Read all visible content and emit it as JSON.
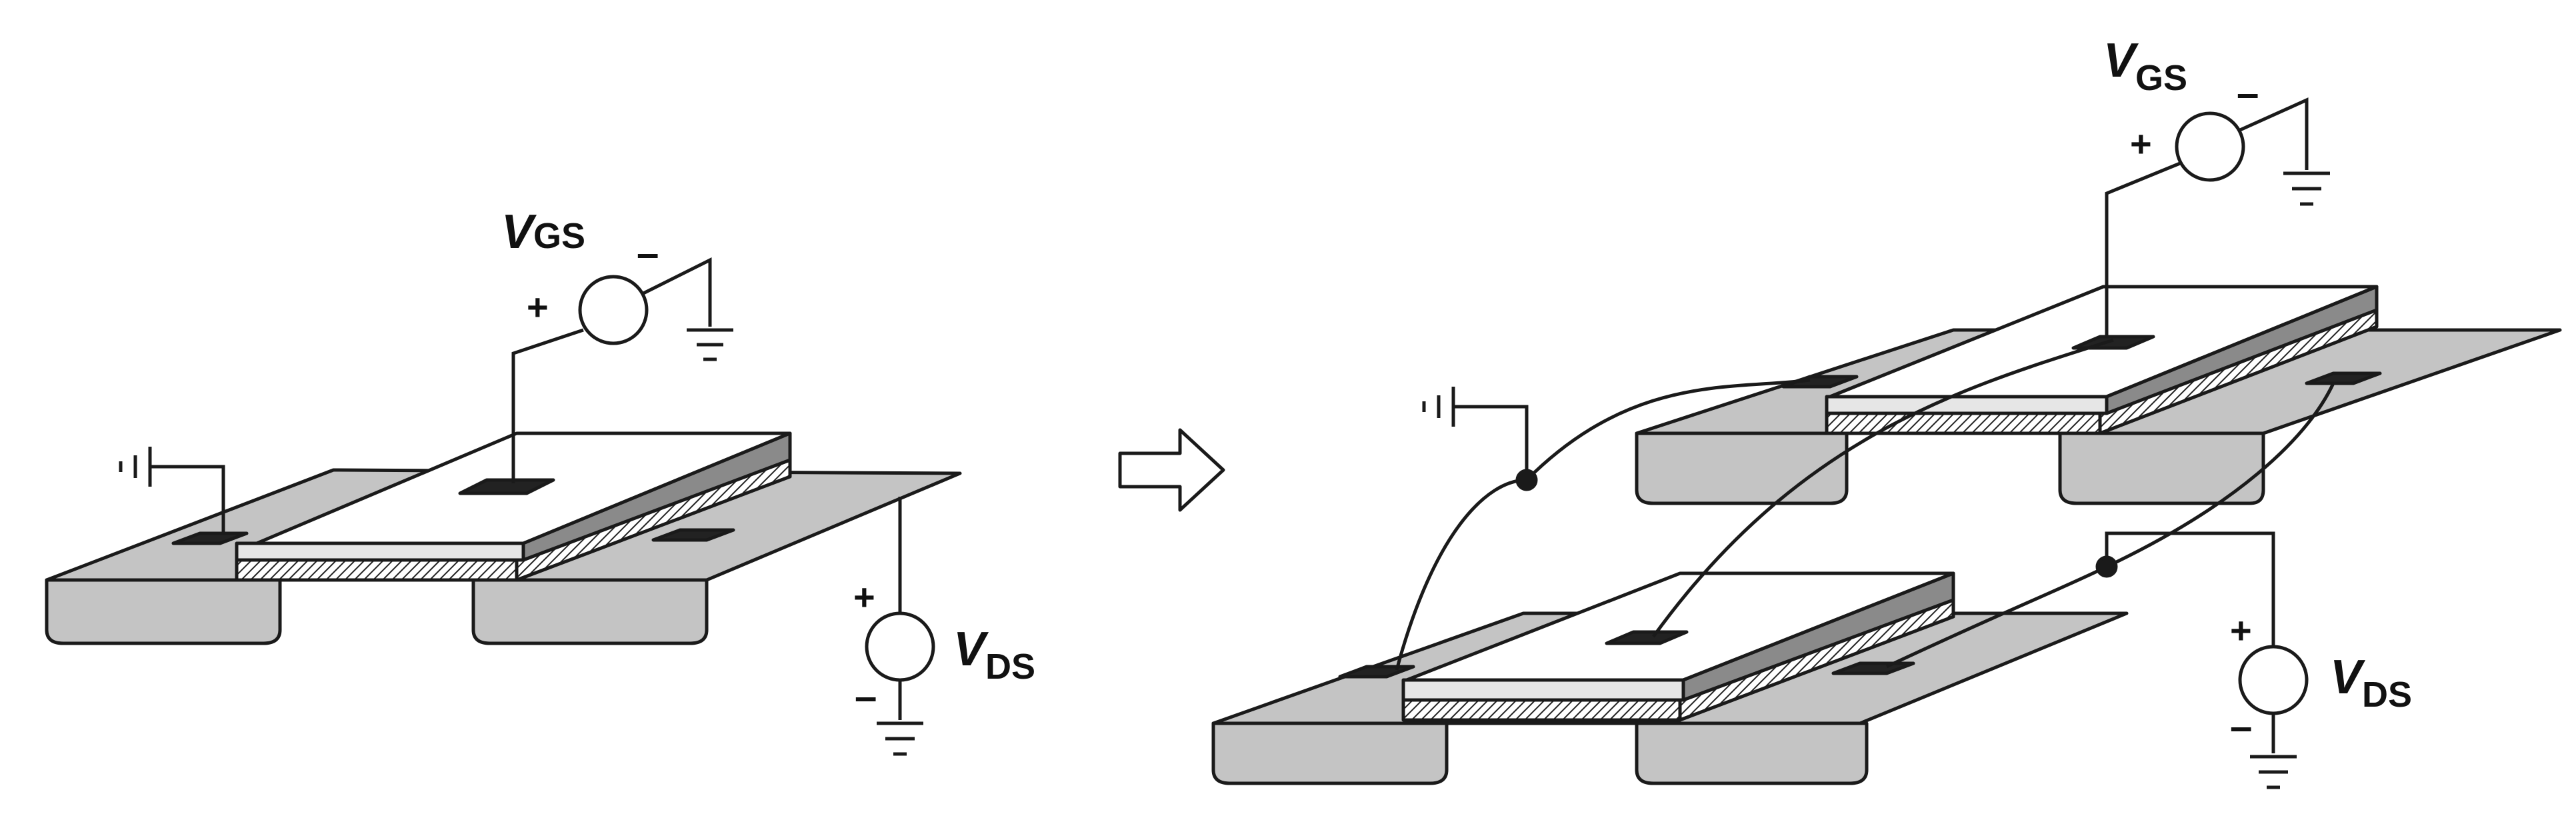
{
  "figure": {
    "left_device": {
      "vgs_label": {
        "main": "V",
        "sub": "GS"
      },
      "vds_label": {
        "main": "V",
        "sub": "DS"
      },
      "vgs_plus": "+",
      "vgs_minus": "–",
      "vds_plus": "+",
      "vds_minus": "–"
    },
    "right_device": {
      "vgs_label": {
        "main": "V",
        "sub": "GS"
      },
      "vds_label": {
        "main": "V",
        "sub": "DS"
      },
      "vgs_plus": "+",
      "vgs_minus": "–",
      "vds_plus": "+",
      "vds_minus": "–"
    },
    "arrow": "transform-arrow",
    "colors": {
      "substrate": "#c4c4c4",
      "substrate_dark": "#a8a8a8",
      "gate_top": "#ffffff",
      "gate_side": "#8a8a8a",
      "contact": "#222222",
      "stroke": "#1a1a1a"
    }
  }
}
